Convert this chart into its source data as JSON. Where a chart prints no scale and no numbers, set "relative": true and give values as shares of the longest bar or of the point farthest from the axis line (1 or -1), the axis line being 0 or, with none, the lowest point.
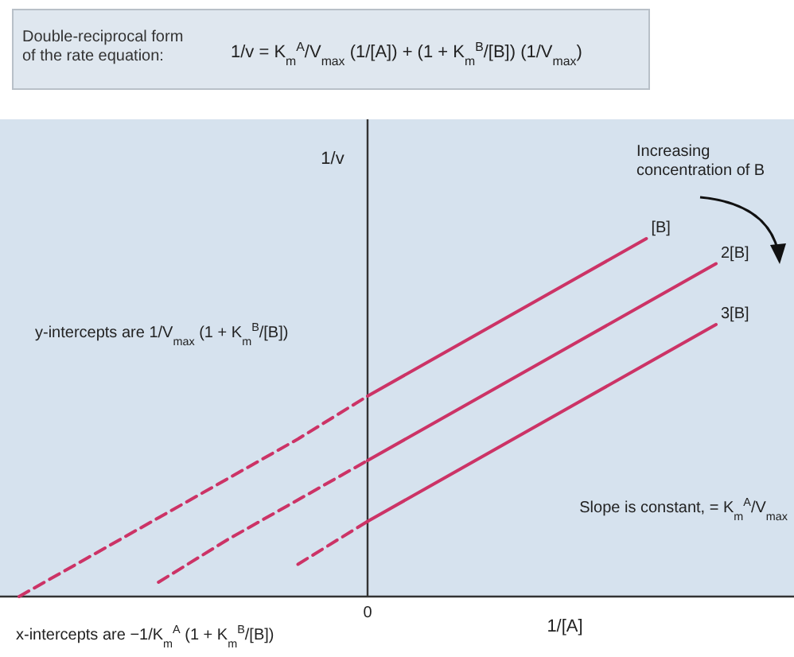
{
  "chart_data": {
    "type": "line",
    "relative": true,
    "title": "Double-reciprocal form of the rate equation:",
    "subtitle": "1/v = K$_{m}$$^{A}$/V$_{max}$ (1/[A]) + (1 + K$_{m}$$^{B}$/[B]) (1/V$_{max}$)",
    "xlabel": "1/[A]",
    "ylabel": "1/v",
    "annotations": [
      "Increasing concentration of B",
      "y-intercepts are 1/V$_{max}$ (1 + K$_{m}$$^{B}$/[B])",
      "Slope is constant, = K$_{m}$$^{A}$/V$_{max}$",
      "x-intercepts are −1/K$_{m}$$^{A}$ (1 + K$_{m}$$^{B}$/[B])",
      "0"
    ],
    "categories": [
      null,
      null,
      null,
      null,
      null,
      null,
      null,
      null,
      null,
      null,
      null,
      null
    ],
    "series": [
      {
        "color": "#cc3366",
        "line_style": "dashed",
        "values": [
          0,
          0.11,
          0.22,
          0.33,
          0.44,
          0.56,
          null,
          null,
          null,
          null,
          null,
          null
        ]
      },
      {
        "name": "[B]",
        "color": "#cc3366",
        "line_style": "solid",
        "values": [
          null,
          null,
          null,
          null,
          null,
          0.56,
          0.67,
          0.78,
          0.89,
          1,
          null,
          null
        ]
      },
      {
        "color": "#cc3366",
        "line_style": "dashed",
        "values": [
          null,
          null,
          0.04,
          0.16,
          0.27,
          0.38,
          null,
          null,
          null,
          null,
          null,
          null
        ]
      },
      {
        "name": "2[B]",
        "color": "#cc3366",
        "line_style": "solid",
        "values": [
          null,
          null,
          null,
          null,
          null,
          0.38,
          0.49,
          0.6,
          0.71,
          0.82,
          0.93,
          null
        ]
      },
      {
        "color": "#cc3366",
        "line_style": "dashed",
        "values": [
          null,
          null,
          null,
          null,
          0.09,
          0.21,
          null,
          null,
          null,
          null,
          null,
          null
        ]
      },
      {
        "name": "3[B]",
        "color": "#cc3366",
        "line_style": "solid",
        "values": [
          null,
          null,
          null,
          null,
          null,
          0.21,
          0.32,
          0.43,
          0.54,
          0.65,
          0.76,
          null
        ]
      }
    ]
  }
}
